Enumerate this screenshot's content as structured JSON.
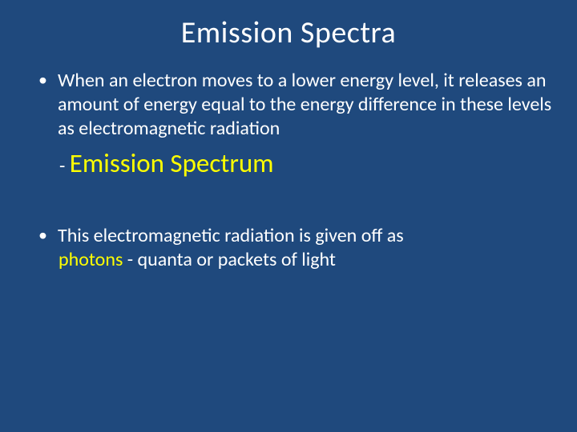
{
  "colors": {
    "background": "#1f497d",
    "text": "#ffffff",
    "highlight": "#ffff00"
  },
  "title": "Emission Spectra",
  "bullets": [
    {
      "text": "When an electron moves to a lower energy level, it releases an amount of energy equal to the energy difference in these levels as electromagnetic radiation"
    },
    {
      "text_part1": "This electromagnetic radiation is given off as ",
      "text_part2_highlight": "photons",
      "text_part3": " - quanta or packets of light"
    }
  ],
  "sub": {
    "dash": "- ",
    "term": "Emission Spectrum"
  }
}
